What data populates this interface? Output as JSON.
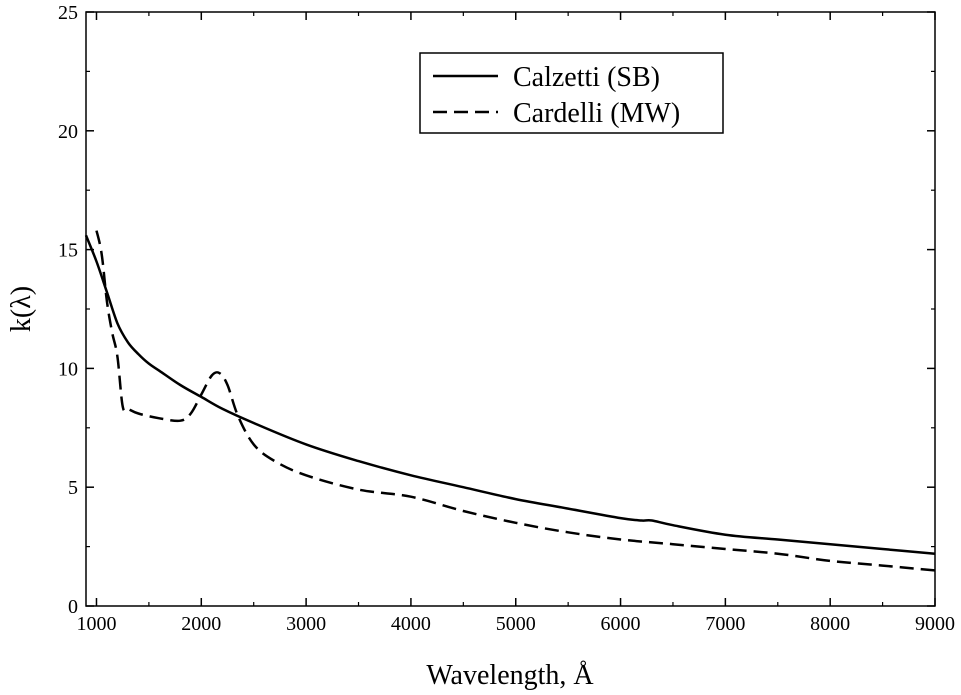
{
  "chart_data": {
    "type": "line",
    "title": "",
    "xlabel": "Wavelength, Å",
    "ylabel": "k(λ)",
    "xlim": [
      900,
      9000
    ],
    "ylim": [
      0,
      25
    ],
    "xticks": [
      1000,
      2000,
      3000,
      4000,
      5000,
      6000,
      7000,
      8000,
      9000
    ],
    "yticks": [
      0,
      5,
      10,
      15,
      20,
      25
    ],
    "grid": false,
    "legend_position": "top-right",
    "series": [
      {
        "name": "Calzetti (SB)",
        "style": "solid",
        "color": "#000000",
        "x": [
          900,
          1000,
          1100,
          1200,
          1300,
          1400,
          1500,
          1600,
          1800,
          2000,
          2200,
          2500,
          3000,
          3500,
          4000,
          4500,
          5000,
          5500,
          6000,
          6200,
          6300,
          6500,
          7000,
          7500,
          8000,
          8500,
          9000
        ],
        "y": [
          15.6,
          14.5,
          13.2,
          11.9,
          11.1,
          10.6,
          10.2,
          9.9,
          9.3,
          8.8,
          8.3,
          7.7,
          6.8,
          6.1,
          5.5,
          5.0,
          4.5,
          4.1,
          3.7,
          3.6,
          3.6,
          3.4,
          3.0,
          2.8,
          2.6,
          2.4,
          2.2
        ]
      },
      {
        "name": "Cardelli (MW)",
        "style": "dashed",
        "color": "#000000",
        "x": [
          1000,
          1050,
          1100,
          1150,
          1200,
          1250,
          1300,
          1400,
          1600,
          1800,
          1900,
          2000,
          2100,
          2175,
          2250,
          2350,
          2500,
          2700,
          3000,
          3500,
          4000,
          4500,
          5000,
          5500,
          6000,
          6500,
          7000,
          7500,
          8000,
          8500,
          9000
        ],
        "y": [
          15.8,
          14.8,
          12.8,
          11.5,
          10.5,
          8.4,
          8.3,
          8.1,
          7.9,
          7.8,
          8.1,
          8.9,
          9.7,
          9.8,
          9.3,
          8.0,
          6.8,
          6.1,
          5.5,
          4.9,
          4.6,
          4.0,
          3.5,
          3.1,
          2.8,
          2.6,
          2.4,
          2.2,
          1.9,
          1.7,
          1.5
        ]
      }
    ]
  }
}
